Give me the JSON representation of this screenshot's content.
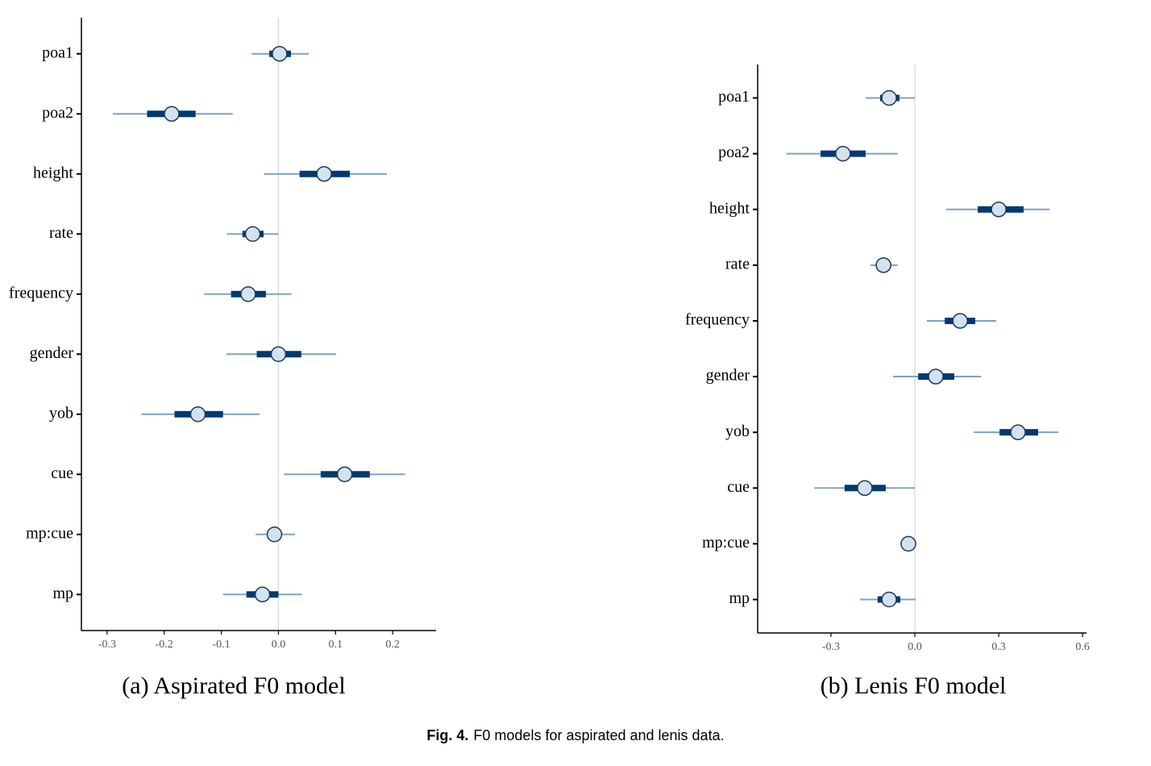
{
  "chart_data": [
    {
      "type": "interval",
      "caption": "(a) Aspirated F0 model",
      "categories": [
        "poa1",
        "poa2",
        "height",
        "rate",
        "frequency",
        "gender",
        "yob",
        "cue",
        "mp:cue",
        "mp"
      ],
      "values": [
        0.002,
        -0.187,
        0.08,
        -0.045,
        -0.053,
        0.0,
        -0.141,
        0.116,
        -0.007,
        -0.028
      ],
      "inner_low": [
        -0.016,
        -0.23,
        0.037,
        -0.063,
        -0.083,
        -0.038,
        -0.182,
        0.074,
        -0.013,
        -0.056
      ],
      "inner_high": [
        0.022,
        -0.145,
        0.125,
        -0.026,
        -0.022,
        0.04,
        -0.097,
        0.16,
        0.0,
        0.0
      ],
      "outer_low": [
        -0.047,
        -0.29,
        -0.025,
        -0.09,
        -0.13,
        -0.091,
        -0.24,
        0.01,
        -0.04,
        -0.097
      ],
      "outer_high": [
        0.053,
        -0.08,
        0.19,
        0.0,
        0.023,
        0.101,
        -0.033,
        0.222,
        0.029,
        0.041
      ],
      "xlim": [
        -0.345,
        0.276
      ],
      "xticks": [
        -0.3,
        -0.2,
        -0.1,
        {
          "value": 0,
          "label": "0.0"
        },
        0.1,
        0.2
      ],
      "refline": 0,
      "colors": {
        "outer": "#7ba3c2",
        "inner": "#003a70",
        "point": "#d3e2ef",
        "point_edge": "#1c3a5a"
      }
    },
    {
      "type": "interval",
      "caption": "(b) Lenis F0 model",
      "categories": [
        "poa1",
        "poa2",
        "height",
        "rate",
        "frequency",
        "gender",
        "yob",
        "cue",
        "mp:cue",
        "mp"
      ],
      "values": [
        -0.092,
        -0.257,
        0.3,
        -0.112,
        0.162,
        0.075,
        0.369,
        -0.179,
        -0.023,
        -0.092
      ],
      "inner_low": [
        -0.124,
        -0.337,
        0.225,
        -0.125,
        0.107,
        0.012,
        0.303,
        -0.251,
        -0.035,
        -0.133
      ],
      "inner_high": [
        -0.055,
        -0.176,
        0.389,
        -0.1,
        0.216,
        0.141,
        0.441,
        -0.104,
        -0.01,
        -0.052
      ],
      "outer_low": [
        -0.176,
        -0.459,
        0.112,
        -0.159,
        0.043,
        -0.078,
        0.211,
        -0.36,
        -0.052,
        -0.196
      ],
      "outer_high": [
        0.0,
        -0.061,
        0.482,
        -0.061,
        0.291,
        0.237,
        0.513,
        0.0,
        0.006,
        0.003
      ],
      "xlim": [
        -0.562,
        0.614
      ],
      "xticks": [
        -0.3,
        {
          "value": 0,
          "label": "0.0"
        },
        0.3,
        0.6
      ],
      "refline": 0,
      "colors": {
        "outer": "#7ba3c2",
        "inner": "#003a70",
        "point": "#d3e2ef",
        "point_edge": "#1c3a5a"
      }
    }
  ],
  "figure_caption": {
    "label": "Fig. 4.",
    "text": "F0 models for aspirated and lenis data."
  }
}
